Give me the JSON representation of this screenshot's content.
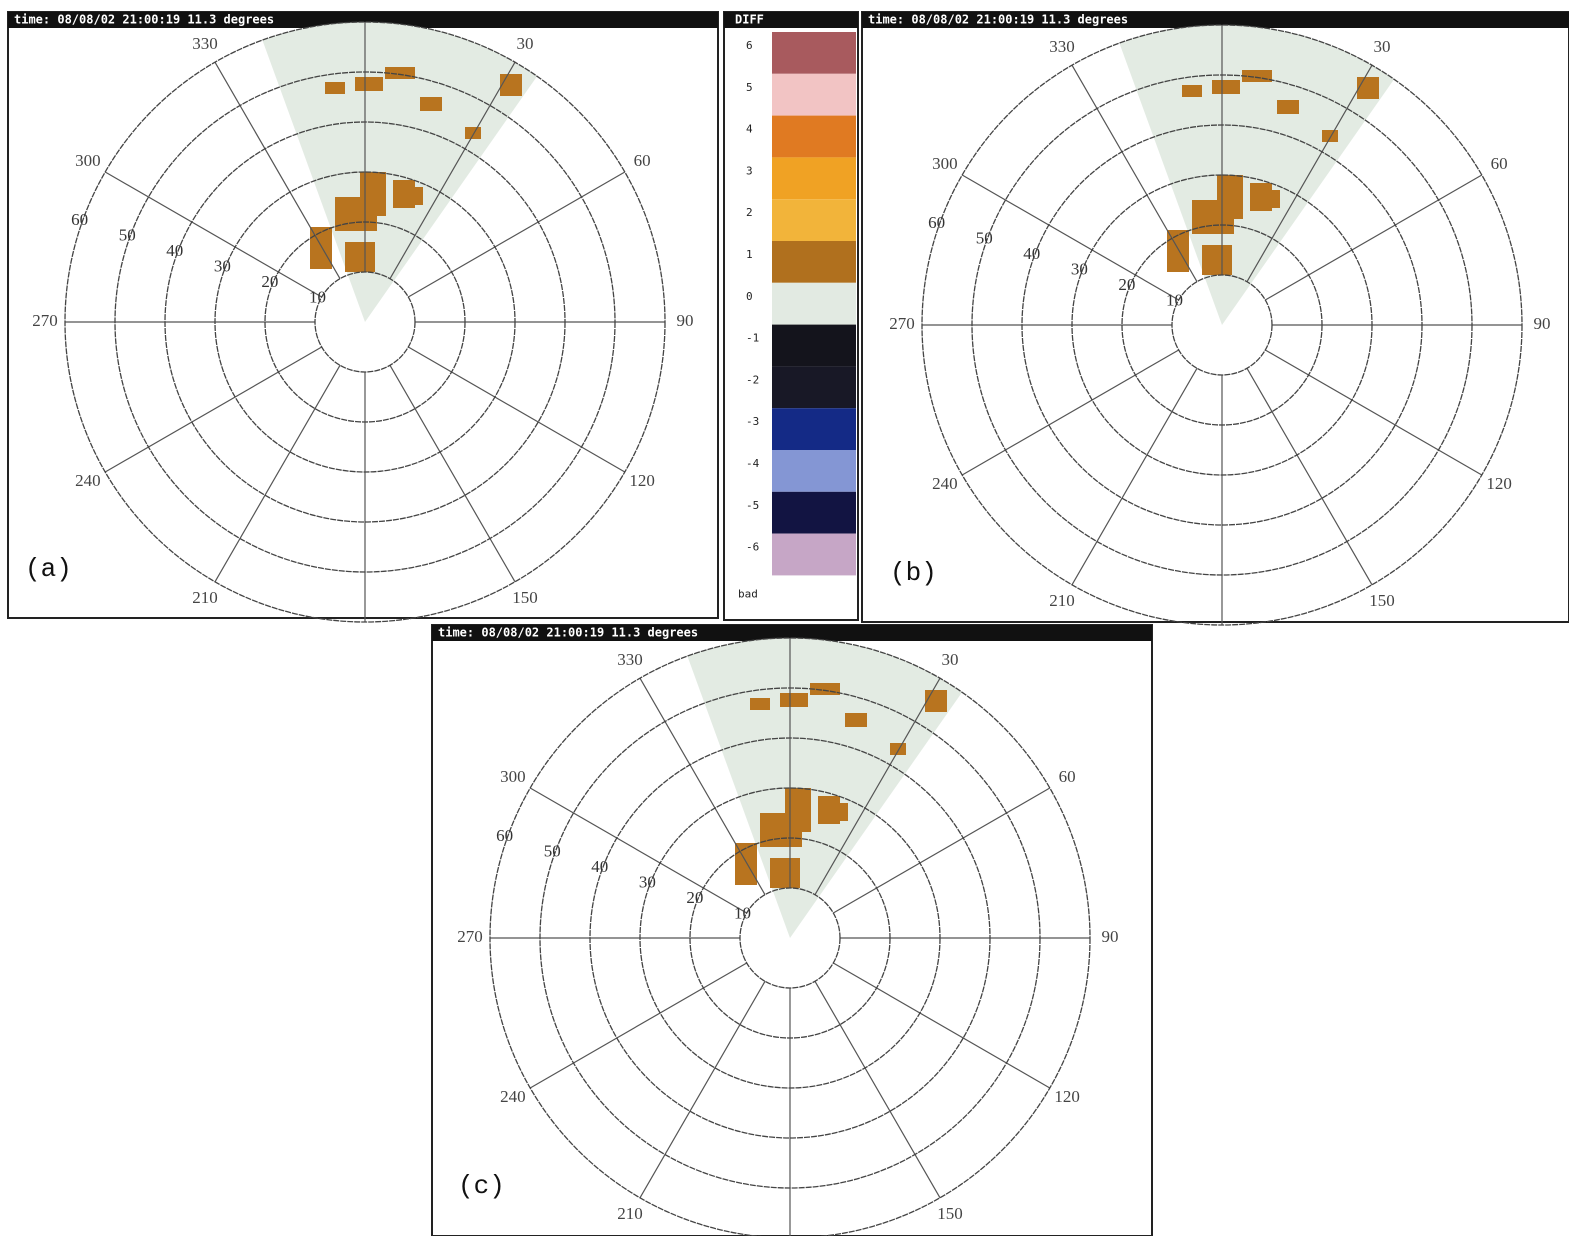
{
  "panels": [
    {
      "header": "time: 08/08/02 21:00:19 11.3 degrees",
      "label": "(a)",
      "azimuth_labels": [
        330,
        30,
        300,
        60,
        270,
        90,
        240,
        120,
        210,
        150
      ],
      "range_labels": [
        10,
        20,
        30,
        40,
        50,
        60
      ]
    },
    {
      "header": "time: 08/08/02 21:00:19 11.3 degrees",
      "label": "(b)",
      "azimuth_labels": [
        330,
        30,
        300,
        60,
        270,
        90,
        240,
        120,
        210,
        150
      ],
      "range_labels": [
        10,
        20,
        30,
        40,
        50,
        60
      ]
    },
    {
      "header": "time: 08/08/02 21:00:19 11.3 degrees",
      "label": "(c)",
      "azimuth_labels": [
        330,
        30,
        300,
        60,
        270,
        90,
        240,
        120,
        210,
        150
      ],
      "range_labels": [
        10,
        20,
        30,
        40,
        50,
        60
      ]
    }
  ],
  "legend": {
    "title": "DIFF",
    "bad_label": "bad",
    "entries": [
      {
        "label": 6,
        "color": "#a85a5e"
      },
      {
        "label": 5,
        "color": "#f2c4c4"
      },
      {
        "label": 4,
        "color": "#e07a22"
      },
      {
        "label": 3,
        "color": "#f0a224"
      },
      {
        "label": 2,
        "color": "#f2b43a"
      },
      {
        "label": 1,
        "color": "#b0701e"
      },
      {
        "label": 0,
        "color": "#e2eae2"
      },
      {
        "label": -1,
        "color": "#14141c"
      },
      {
        "label": -2,
        "color": "#181826"
      },
      {
        "label": -3,
        "color": "#142a86"
      },
      {
        "label": -4,
        "color": "#8496d4"
      },
      {
        "label": -5,
        "color": "#121442"
      },
      {
        "label": -6,
        "color": "#c6a6c6"
      }
    ]
  }
}
